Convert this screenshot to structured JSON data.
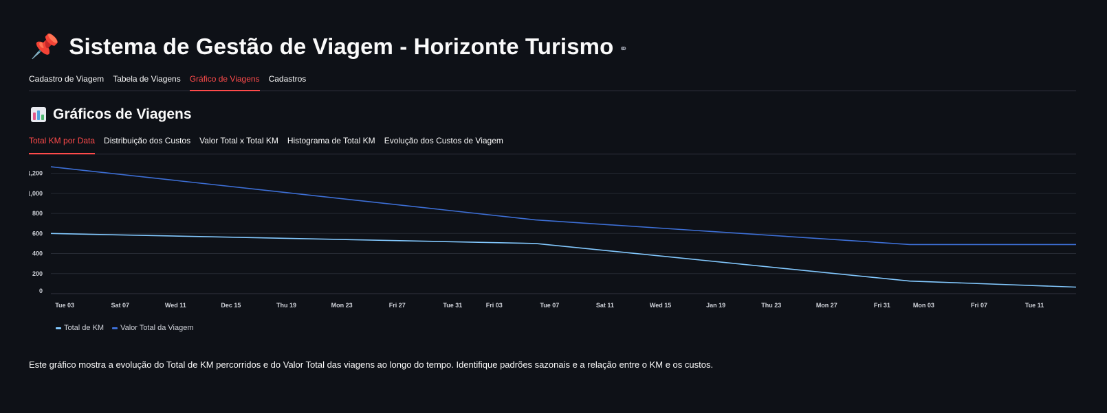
{
  "header": {
    "title_emoji": "📌",
    "title": "Sistema de Gestão de Viagem - Horizonte Turismo",
    "anchor_icon": "link-icon"
  },
  "main_tabs": [
    {
      "label": "Cadastro de Viagem",
      "active": false
    },
    {
      "label": "Tabela de Viagens",
      "active": false
    },
    {
      "label": "Gráfico de Viagens",
      "active": true
    },
    {
      "label": "Cadastros",
      "active": false
    }
  ],
  "section": {
    "icon": "bar-chart-icon",
    "title": "Gráficos de Viagens"
  },
  "chart_tabs": [
    {
      "label": "Total KM por Data",
      "active": true
    },
    {
      "label": "Distribuição dos Custos",
      "active": false
    },
    {
      "label": "Valor Total x Total KM",
      "active": false
    },
    {
      "label": "Histograma de Total KM",
      "active": false
    },
    {
      "label": "Evolução dos Custos de Viagem",
      "active": false
    }
  ],
  "chart_data": {
    "type": "line",
    "title": "",
    "xlabel": "",
    "ylabel": "",
    "x_tick_labels": [
      "Tue 03",
      "Sat 07",
      "Wed 11",
      "Dec 15",
      "Thu 19",
      "Mon 23",
      "Fri 27",
      "Tue 31",
      "Fri 03",
      "Tue 07",
      "Sat 11",
      "Wed 15",
      "Jan 19",
      "Thu 23",
      "Mon 27",
      "Fri 31",
      "Mon 03",
      "Fri 07",
      "Tue 11"
    ],
    "x_tick_dates": [
      "2024-12-03",
      "2024-12-07",
      "2024-12-11",
      "2024-12-15",
      "2024-12-19",
      "2024-12-23",
      "2024-12-27",
      "2024-12-31",
      "2025-01-03",
      "2025-01-07",
      "2025-01-11",
      "2025-01-15",
      "2025-01-19",
      "2025-01-23",
      "2025-01-27",
      "2025-01-31",
      "2025-02-03",
      "2025-02-07",
      "2025-02-11"
    ],
    "y_ticks": [
      0,
      200,
      400,
      600,
      800,
      1000,
      1200
    ],
    "y_tick_labels": [
      "0",
      "200",
      "400",
      "600",
      "800",
      "1,000",
      "1,200"
    ],
    "ylim": [
      0,
      1300
    ],
    "grid": "horizontal",
    "legend_position": "bottom-left",
    "series": [
      {
        "name": "Total de KM",
        "color": "#83c9ff",
        "points": [
          [
            "2024-12-02",
            600
          ],
          [
            "2025-01-06",
            500
          ],
          [
            "2025-02-02",
            125
          ],
          [
            "2025-02-14",
            65
          ]
        ]
      },
      {
        "name": "Valor Total da Viagem",
        "color": "#3d6fd6",
        "points": [
          [
            "2024-12-02",
            1265
          ],
          [
            "2025-01-06",
            735
          ],
          [
            "2025-02-02",
            490
          ],
          [
            "2025-02-14",
            490
          ]
        ]
      }
    ]
  },
  "caption": "Este gráfico mostra a evolução do Total de KM percorridos e do Valor Total das viagens ao longo do tempo. Identifique padrões sazonais e a relação entre o KM e os custos."
}
